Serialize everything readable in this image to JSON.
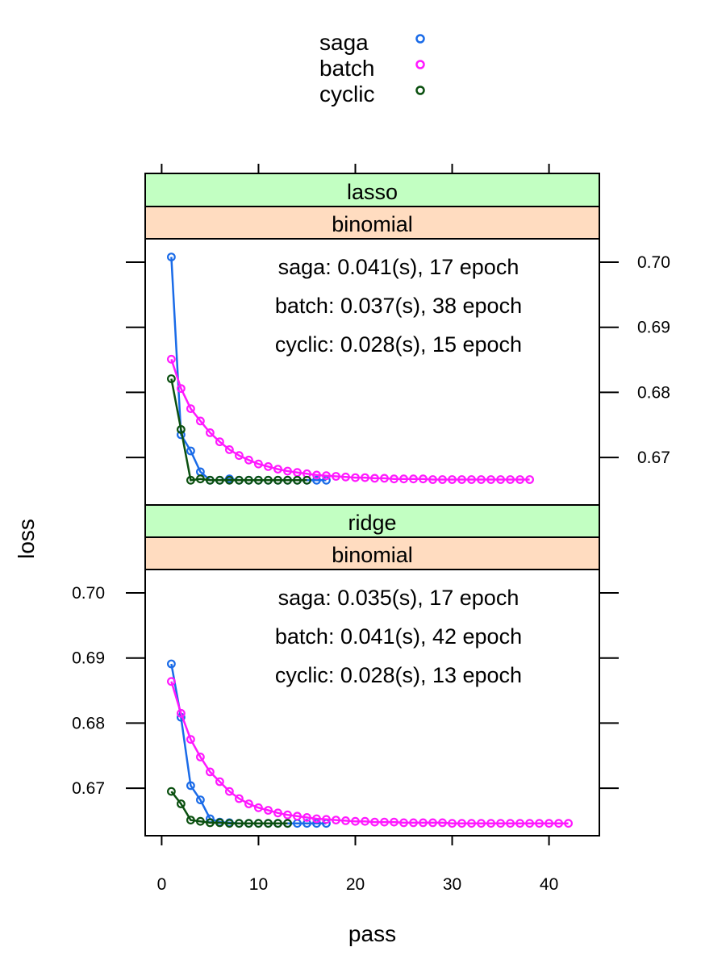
{
  "colors": {
    "saga": "#1a6be8",
    "batch": "#ff19ff",
    "cyclic": "#0b5010",
    "strip_method": "#c2ffc2",
    "strip_family": "#ffdcc0"
  },
  "legend": [
    {
      "label": "saga",
      "color_key": "saga"
    },
    {
      "label": "batch",
      "color_key": "batch"
    },
    {
      "label": "cyclic",
      "color_key": "cyclic"
    }
  ],
  "chart_data": {
    "type": "line",
    "xlabel": "pass",
    "ylabel": "loss",
    "xlim": [
      -1.7,
      45.2
    ],
    "xticks": [
      0,
      10,
      20,
      30,
      40
    ],
    "yticks": [
      0.67,
      0.68,
      0.69,
      0.7
    ],
    "ytick_labels": [
      "0.67",
      "0.68",
      "0.69",
      "0.70"
    ],
    "legend_position": "top",
    "panels": [
      {
        "strip_method": "lasso",
        "strip_family": "binomial",
        "ylim": [
          0.6627,
          0.7036
        ],
        "y_axis_side": "right",
        "annotations": [
          "saga: 0.041(s), 17 epoch",
          "batch: 0.037(s), 38 epoch",
          "cyclic: 0.028(s), 15 epoch"
        ],
        "series": [
          {
            "name": "saga",
            "x_start": 1,
            "values": [
              0.7008,
              0.6735,
              0.671,
              0.6678,
              0.6665,
              0.6665,
              0.6667,
              0.6665,
              0.6665,
              0.6665,
              0.6665,
              0.6665,
              0.6665,
              0.6665,
              0.6665,
              0.6665,
              0.6665
            ]
          },
          {
            "name": "batch",
            "x_start": 1,
            "values": [
              0.6851,
              0.6806,
              0.6775,
              0.6756,
              0.6738,
              0.6724,
              0.6712,
              0.6703,
              0.6696,
              0.669,
              0.6686,
              0.6682,
              0.6679,
              0.6677,
              0.6675,
              0.6673,
              0.6672,
              0.6671,
              0.667,
              0.6669,
              0.6669,
              0.6668,
              0.6668,
              0.6667,
              0.6667,
              0.6667,
              0.6667,
              0.6666,
              0.6666,
              0.6666,
              0.6666,
              0.6666,
              0.6666,
              0.6666,
              0.6666,
              0.6666,
              0.6666,
              0.6666
            ]
          },
          {
            "name": "cyclic",
            "x_start": 1,
            "values": [
              0.6821,
              0.6743,
              0.6665,
              0.6667,
              0.6665,
              0.6665,
              0.6665,
              0.6665,
              0.6665,
              0.6665,
              0.6665,
              0.6665,
              0.6665,
              0.6665,
              0.6665
            ]
          }
        ]
      },
      {
        "strip_method": "ridge",
        "strip_family": "binomial",
        "ylim": [
          0.6627,
          0.7036
        ],
        "y_axis_side": "left",
        "annotations": [
          "saga: 0.035(s), 17 epoch",
          "batch: 0.041(s), 42 epoch",
          "cyclic: 0.028(s), 13 epoch"
        ],
        "series": [
          {
            "name": "saga",
            "x_start": 1,
            "values": [
              0.6891,
              0.6809,
              0.6704,
              0.6682,
              0.6653,
              0.6648,
              0.6647,
              0.6646,
              0.6646,
              0.6646,
              0.6646,
              0.6646,
              0.6646,
              0.6646,
              0.6646,
              0.6646,
              0.6646
            ]
          },
          {
            "name": "batch",
            "x_start": 1,
            "values": [
              0.6864,
              0.6815,
              0.6775,
              0.6748,
              0.6725,
              0.671,
              0.6695,
              0.6684,
              0.6676,
              0.667,
              0.6666,
              0.6662,
              0.6659,
              0.6657,
              0.6655,
              0.6653,
              0.6652,
              0.6651,
              0.665,
              0.6649,
              0.6649,
              0.6648,
              0.6648,
              0.6648,
              0.6647,
              0.6647,
              0.6647,
              0.6647,
              0.6647,
              0.6646,
              0.6646,
              0.6646,
              0.6646,
              0.6646,
              0.6646,
              0.6646,
              0.6646,
              0.6646,
              0.6646,
              0.6646,
              0.6646,
              0.6646
            ]
          },
          {
            "name": "cyclic",
            "x_start": 1,
            "values": [
              0.6695,
              0.6676,
              0.6651,
              0.6649,
              0.6647,
              0.6647,
              0.6646,
              0.6646,
              0.6646,
              0.6646,
              0.6646,
              0.6646,
              0.6646
            ]
          }
        ]
      }
    ]
  }
}
